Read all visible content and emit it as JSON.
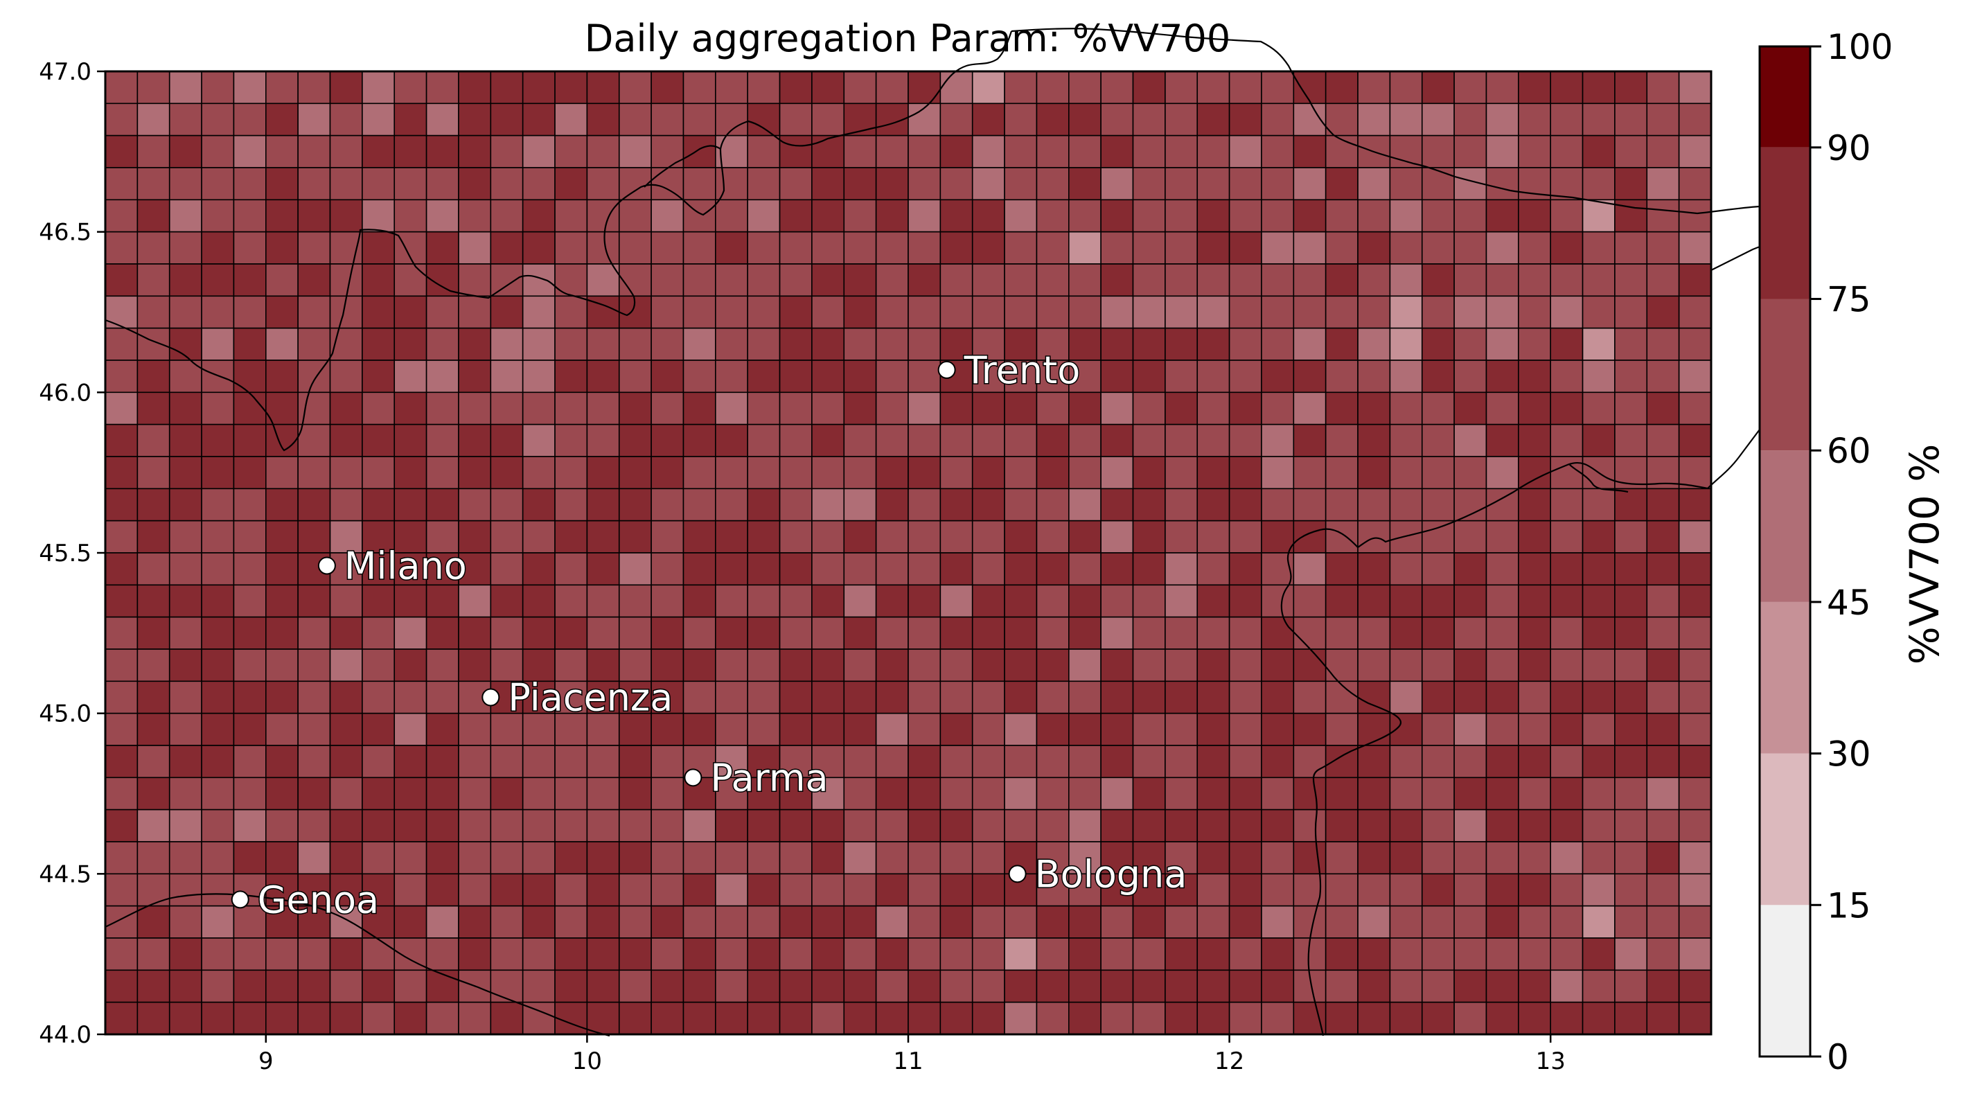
{
  "chart_data": {
    "type": "heatmap",
    "title": "Daily aggregation Param: %VV700",
    "xlabel": "",
    "ylabel": "",
    "xlim": [
      8.5,
      13.5
    ],
    "ylim": [
      44.0,
      47.0
    ],
    "xticks": [
      "9",
      "10",
      "11",
      "12",
      "13"
    ],
    "yticks": [
      "44.0",
      "44.5",
      "45.0",
      "45.5",
      "46.0",
      "46.5",
      "47.0"
    ],
    "grid": {
      "lon_start": 8.5,
      "lat_start": 44.0,
      "step": 0.1,
      "cols": 50,
      "rows": 30
    },
    "colorbar": {
      "label": "%VV700 %",
      "ticks": [
        "0",
        "15",
        "30",
        "45",
        "60",
        "75",
        "90",
        "100"
      ],
      "boundaries": [
        0,
        15,
        30,
        45,
        60,
        75,
        90,
        100
      ],
      "colors": [
        "#f0f0f0",
        "#dcb9bd",
        "#c69197",
        "#b06e76",
        "#9b4950",
        "#862a31",
        "#6d0005"
      ]
    },
    "cities": [
      {
        "name": "Trento",
        "lon": 11.12,
        "lat": 46.07
      },
      {
        "name": "Milano",
        "lon": 9.19,
        "lat": 45.46
      },
      {
        "name": "Piacenza",
        "lon": 9.7,
        "lat": 45.05
      },
      {
        "name": "Parma",
        "lon": 10.33,
        "lat": 44.8
      },
      {
        "name": "Bologna",
        "lon": 11.34,
        "lat": 44.5
      },
      {
        "name": "Genoa",
        "lon": 8.92,
        "lat": 44.42
      }
    ],
    "values": [
      "44343445344555554544455445324444544445544544555543",
      "43444534353555354444544553454554445543433343444444",
      "54543444555543443453455444534445444345444443445443",
      "44444544444544544444445554434453444443534434444534",
      "45344555343445444344355453553445445445443445542544",
      "44454544545355444445444444554424445533454443454443",
      "54555454545443434444445545444445444444543544444445",
      "34444544554453455444454544444443333444442433434454",
      "44535344554533444434455444545455555443532543452444",
      "45445544533533554544555544544445544455443545543443",
      "35545545454444445453444543555453454543554454554454",
      "54555545554553445555445444444545444435454435545445",
      "54555444454554455544444455454543545534454443544444",
      "55544554555445455444543354554435545544444444544555",
      "45444553554544555455544544445453544455444444545453",
      "54444554555545453455554444545545534543554454555555",
      "55554554555355444454445355355454435544555554555545",
      "45455545435545544545544544555453444454445544545544",
      "44554443454545454554455454455535445455444454544454",
      "45455545444455455544455554445445555454453555455544",
      "45455445535444445554455534543555445455455434454554",
      "54554545455444445443544445444445445454554445545555",
      "45444554555454445454553455443443545545554455454434",
      "53343445555444444435555445544435555554555435554444",
      "44445535445444555444445344445435545545455444434453",
      "44444555545455454453544454555445554544444545543443",
      "45434553553545454544455534544554544534434445442444",
      "44544445444544555454545454442454455454554444445343",
      "55545554545444554554555545445555555554454455534455",
      "55555555454454555555554555553454455445555545555555"
    ]
  }
}
